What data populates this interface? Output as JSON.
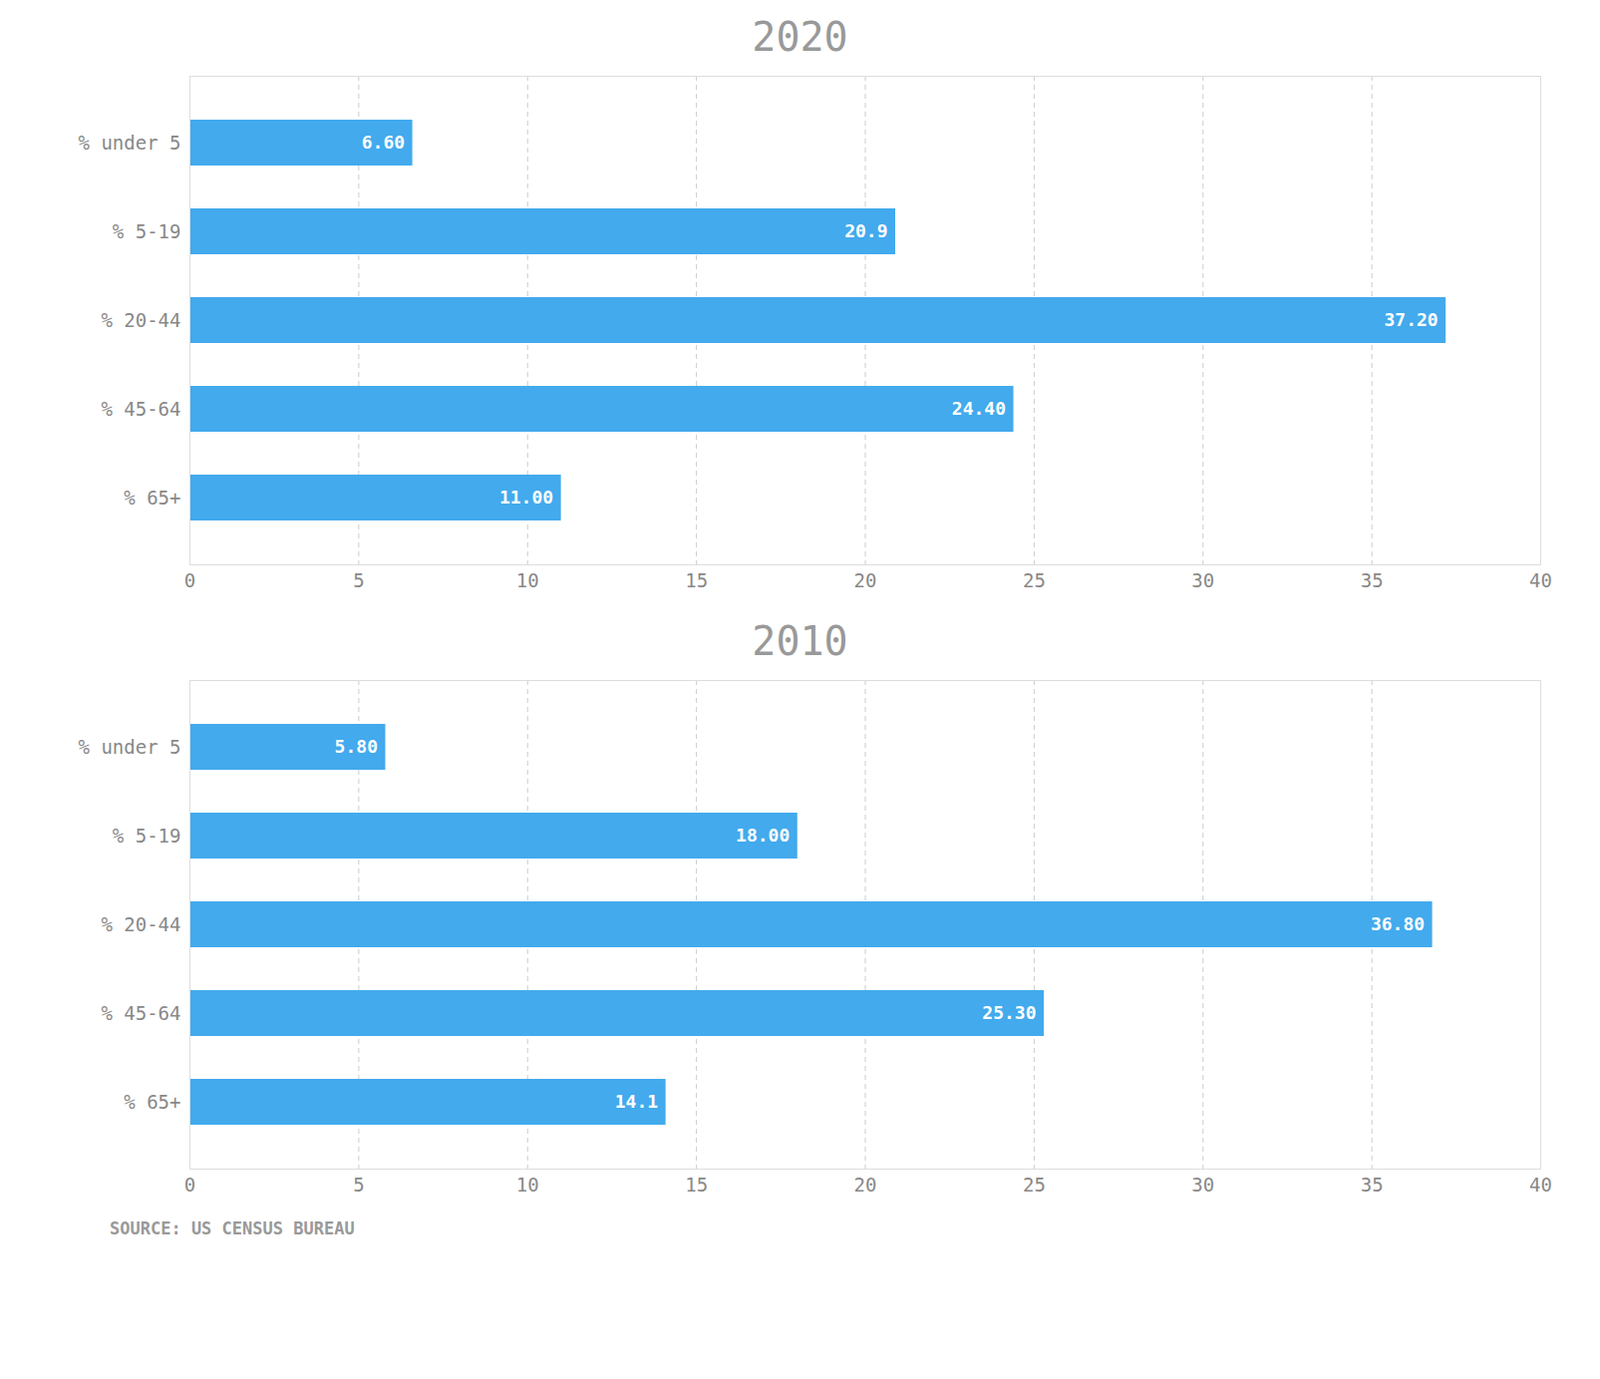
{
  "chart_data": [
    {
      "type": "bar",
      "orientation": "horizontal",
      "title": "2020",
      "categories": [
        "% under 5",
        "% 5-19",
        "% 20-44",
        "% 45-64",
        "% 65+"
      ],
      "values": [
        6.6,
        20.9,
        37.2,
        24.4,
        11.0
      ],
      "value_labels": [
        "6.60",
        "20.9",
        "37.20",
        "24.40",
        "11.00"
      ],
      "data_labels": true,
      "color": "#42AAED",
      "xlim": [
        0,
        40
      ],
      "xticks": [
        0,
        5,
        10,
        15,
        20,
        25,
        30,
        35,
        40
      ],
      "grid": true
    },
    {
      "type": "bar",
      "orientation": "horizontal",
      "title": "2010",
      "categories": [
        "% under 5",
        "% 5-19",
        "% 20-44",
        "% 45-64",
        "% 65+"
      ],
      "values": [
        5.8,
        18.0,
        36.8,
        25.3,
        14.1
      ],
      "value_labels": [
        "5.80",
        "18.00",
        "36.80",
        "25.30",
        "14.1"
      ],
      "data_labels": true,
      "color": "#42AAED",
      "xlim": [
        0,
        40
      ],
      "xticks": [
        0,
        5,
        10,
        15,
        20,
        25,
        30,
        35,
        40
      ],
      "grid": true,
      "annotations": [
        "SOURCE:  US CENSUS BUREAU"
      ]
    }
  ]
}
